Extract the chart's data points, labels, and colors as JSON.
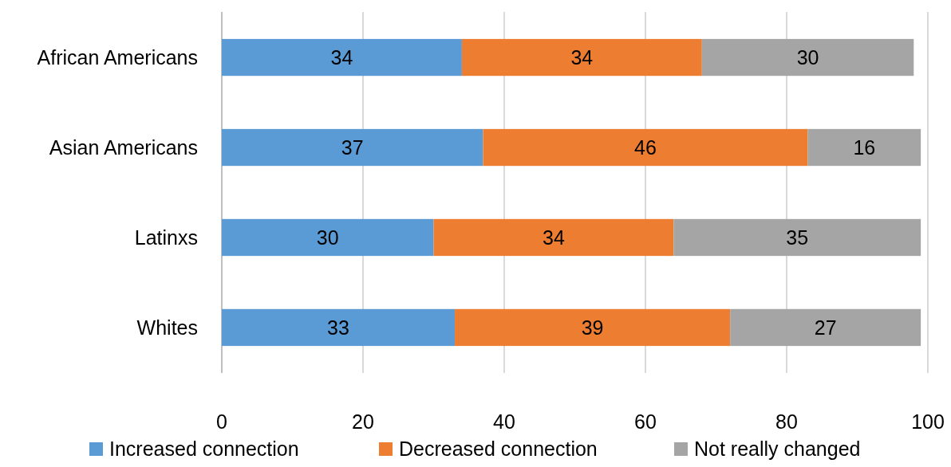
{
  "chart_data": {
    "type": "bar",
    "orientation": "horizontal",
    "stacked": true,
    "categories": [
      "African Americans",
      "Asian Americans",
      "Latinxs",
      "Whites"
    ],
    "series": [
      {
        "name": "Increased connection",
        "color": "#5b9bd5",
        "values": [
          34,
          37,
          30,
          33
        ]
      },
      {
        "name": "Decreased connection",
        "color": "#ed7d31",
        "values": [
          34,
          46,
          34,
          39
        ]
      },
      {
        "name": "Not really changed",
        "color": "#a5a5a5",
        "values": [
          30,
          16,
          35,
          27
        ]
      }
    ],
    "xlim": [
      0,
      100
    ],
    "xticks": [
      0,
      20,
      40,
      60,
      80,
      100
    ],
    "grid": "x",
    "legend": "bottom",
    "data_labels": true
  }
}
